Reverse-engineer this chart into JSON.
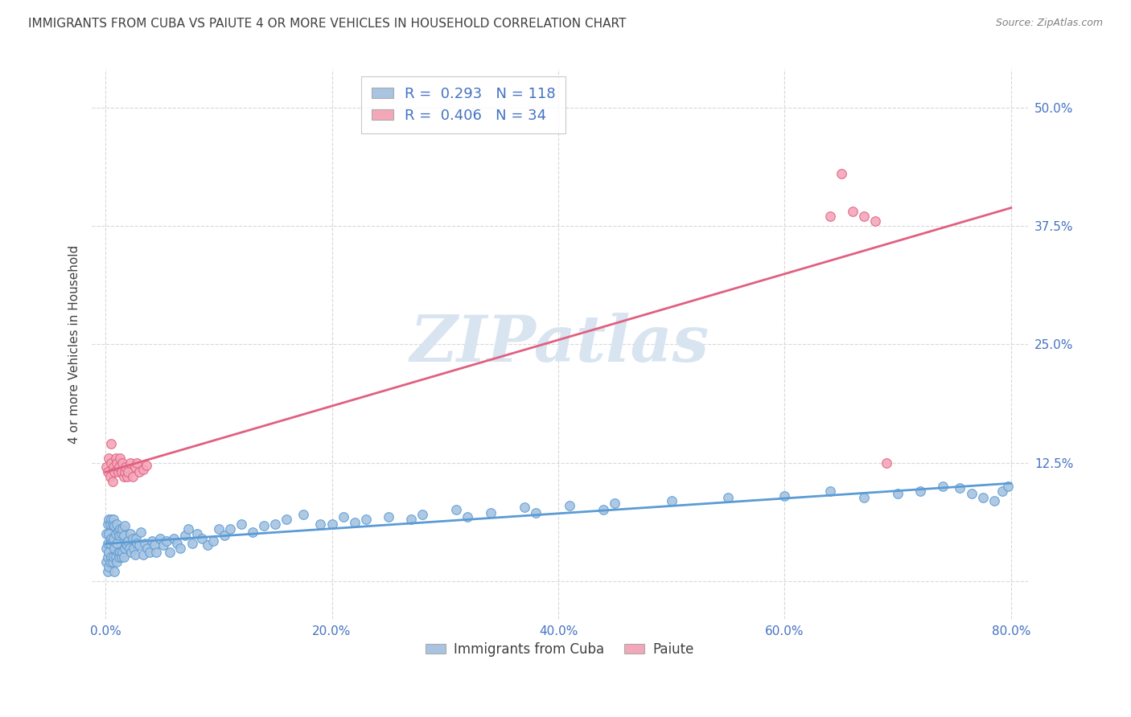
{
  "title": "IMMIGRANTS FROM CUBA VS PAIUTE 4 OR MORE VEHICLES IN HOUSEHOLD CORRELATION CHART",
  "source": "Source: ZipAtlas.com",
  "ylabel": "4 or more Vehicles in Household",
  "legend_labels": [
    "Immigrants from Cuba",
    "Paiute"
  ],
  "blue_R": 0.293,
  "blue_N": 118,
  "pink_R": 0.406,
  "pink_N": 34,
  "blue_color": "#a8c4e0",
  "pink_color": "#f4a7b9",
  "blue_line_color": "#5b9bd5",
  "pink_line_color": "#e06080",
  "title_color": "#404040",
  "source_color": "#808080",
  "legend_text_color": "#4472c4",
  "axis_label_color": "#4472c4",
  "watermark_color": "#d8e4f0",
  "background_color": "#ffffff",
  "grid_color": "#d8d8d8",
  "blue_x": [
    0.001,
    0.001,
    0.001,
    0.002,
    0.002,
    0.002,
    0.002,
    0.003,
    0.003,
    0.003,
    0.003,
    0.004,
    0.004,
    0.004,
    0.005,
    0.005,
    0.005,
    0.006,
    0.006,
    0.006,
    0.007,
    0.007,
    0.007,
    0.008,
    0.008,
    0.008,
    0.009,
    0.009,
    0.01,
    0.01,
    0.01,
    0.011,
    0.011,
    0.012,
    0.012,
    0.013,
    0.013,
    0.014,
    0.014,
    0.015,
    0.015,
    0.016,
    0.016,
    0.017,
    0.017,
    0.018,
    0.019,
    0.02,
    0.021,
    0.022,
    0.023,
    0.024,
    0.025,
    0.026,
    0.027,
    0.028,
    0.03,
    0.031,
    0.033,
    0.035,
    0.037,
    0.039,
    0.041,
    0.043,
    0.045,
    0.048,
    0.051,
    0.054,
    0.057,
    0.06,
    0.063,
    0.066,
    0.07,
    0.073,
    0.077,
    0.081,
    0.085,
    0.09,
    0.095,
    0.1,
    0.105,
    0.11,
    0.12,
    0.13,
    0.14,
    0.15,
    0.16,
    0.175,
    0.19,
    0.21,
    0.23,
    0.25,
    0.28,
    0.31,
    0.34,
    0.37,
    0.41,
    0.45,
    0.5,
    0.55,
    0.6,
    0.64,
    0.67,
    0.7,
    0.72,
    0.74,
    0.755,
    0.765,
    0.775,
    0.785,
    0.792,
    0.797,
    0.2,
    0.22,
    0.27,
    0.32,
    0.38,
    0.44
  ],
  "blue_y": [
    0.02,
    0.035,
    0.05,
    0.01,
    0.025,
    0.04,
    0.06,
    0.015,
    0.03,
    0.05,
    0.065,
    0.02,
    0.04,
    0.06,
    0.025,
    0.045,
    0.065,
    0.02,
    0.042,
    0.06,
    0.025,
    0.045,
    0.065,
    0.01,
    0.035,
    0.058,
    0.025,
    0.05,
    0.02,
    0.04,
    0.06,
    0.03,
    0.052,
    0.025,
    0.048,
    0.03,
    0.055,
    0.025,
    0.05,
    0.03,
    0.055,
    0.025,
    0.048,
    0.035,
    0.058,
    0.04,
    0.038,
    0.042,
    0.035,
    0.05,
    0.03,
    0.045,
    0.035,
    0.028,
    0.045,
    0.04,
    0.038,
    0.052,
    0.028,
    0.04,
    0.035,
    0.03,
    0.042,
    0.038,
    0.03,
    0.045,
    0.038,
    0.042,
    0.03,
    0.045,
    0.04,
    0.035,
    0.048,
    0.055,
    0.04,
    0.05,
    0.045,
    0.038,
    0.042,
    0.055,
    0.048,
    0.055,
    0.06,
    0.052,
    0.058,
    0.06,
    0.065,
    0.07,
    0.06,
    0.068,
    0.065,
    0.068,
    0.07,
    0.075,
    0.072,
    0.078,
    0.08,
    0.082,
    0.085,
    0.088,
    0.09,
    0.095,
    0.088,
    0.092,
    0.095,
    0.1,
    0.098,
    0.092,
    0.088,
    0.085,
    0.095,
    0.1,
    0.06,
    0.062,
    0.065,
    0.068,
    0.072,
    0.075
  ],
  "pink_x": [
    0.001,
    0.002,
    0.003,
    0.004,
    0.005,
    0.005,
    0.006,
    0.007,
    0.008,
    0.009,
    0.01,
    0.011,
    0.012,
    0.013,
    0.014,
    0.015,
    0.016,
    0.017,
    0.018,
    0.019,
    0.02,
    0.022,
    0.024,
    0.026,
    0.028,
    0.03,
    0.033,
    0.036,
    0.64,
    0.65,
    0.66,
    0.67,
    0.68,
    0.69
  ],
  "pink_y": [
    0.12,
    0.115,
    0.13,
    0.11,
    0.125,
    0.145,
    0.105,
    0.12,
    0.115,
    0.13,
    0.125,
    0.115,
    0.12,
    0.13,
    0.115,
    0.125,
    0.11,
    0.115,
    0.12,
    0.11,
    0.115,
    0.125,
    0.11,
    0.12,
    0.125,
    0.115,
    0.118,
    0.122,
    0.385,
    0.43,
    0.39,
    0.385,
    0.38,
    0.125
  ]
}
